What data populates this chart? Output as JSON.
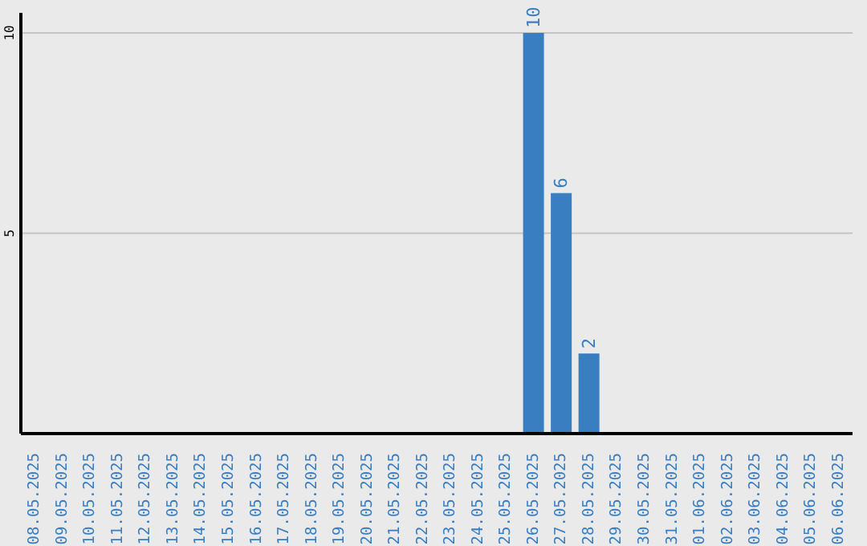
{
  "chart_data": {
    "type": "bar",
    "categories": [
      "08.05.2025",
      "09.05.2025",
      "10.05.2025",
      "11.05.2025",
      "12.05.2025",
      "13.05.2025",
      "14.05.2025",
      "15.05.2025",
      "16.05.2025",
      "17.05.2025",
      "18.05.2025",
      "19.05.2025",
      "20.05.2025",
      "21.05.2025",
      "22.05.2025",
      "23.05.2025",
      "24.05.2025",
      "25.05.2025",
      "26.05.2025",
      "27.05.2025",
      "28.05.2025",
      "29.05.2025",
      "30.05.2025",
      "31.05.2025",
      "01.06.2025",
      "02.06.2025",
      "03.06.2025",
      "04.06.2025",
      "05.06.2025",
      "06.06.2025"
    ],
    "values": [
      0,
      0,
      0,
      0,
      0,
      0,
      0,
      0,
      0,
      0,
      0,
      0,
      0,
      0,
      0,
      0,
      0,
      0,
      10,
      6,
      2,
      0,
      0,
      0,
      0,
      0,
      0,
      0,
      0,
      0
    ],
    "value_labels": [
      null,
      null,
      null,
      null,
      null,
      null,
      null,
      null,
      null,
      null,
      null,
      null,
      null,
      null,
      null,
      null,
      null,
      null,
      "10",
      "6",
      "2",
      null,
      null,
      null,
      null,
      null,
      null,
      null,
      null,
      null
    ],
    "color": "#3a7ec2",
    "ylim": [
      0,
      10.5
    ],
    "yticks": [
      5,
      10
    ],
    "grid": "y",
    "legend": false
  }
}
